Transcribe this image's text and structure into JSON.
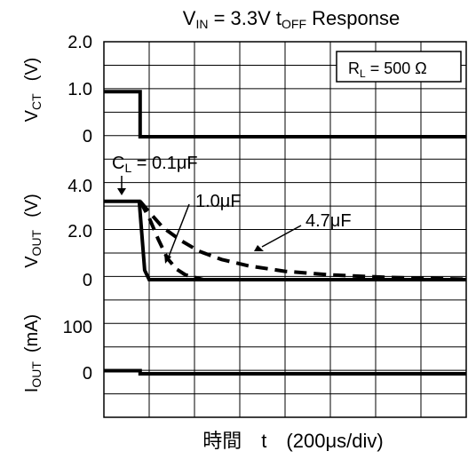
{
  "chart_data": {
    "type": "line",
    "title": {
      "main": "V",
      "main_sub": "IN",
      "mid": " = 3.3V t",
      "mid_sub": "OFF",
      "tail": " Response"
    },
    "condition": {
      "text": "R",
      "sub": "L",
      "tail": " = 500 Ω"
    },
    "xlabel": "時間　t　(200μs/div)",
    "x_divisions": 8,
    "x_unit": "div",
    "panels": [
      {
        "id": "vct",
        "ylabel": {
          "text": "V",
          "sub": "CT",
          "unit": "(V)"
        },
        "yticks": [
          {
            "value": 2.0,
            "label": "2.0"
          },
          {
            "value": 1.0,
            "label": "1.0"
          },
          {
            "value": 0,
            "label": "0"
          }
        ],
        "ylim": [
          0,
          2.0
        ],
        "series": [
          {
            "style": "solid",
            "points": [
              [
                0,
                0.95
              ],
              [
                0.8,
                0.95
              ],
              [
                0.8,
                0
              ],
              [
                8,
                0
              ]
            ]
          }
        ]
      },
      {
        "id": "vout",
        "ylabel": {
          "text": "V",
          "sub": "OUT",
          "unit": "(V)"
        },
        "yticks": [
          {
            "value": 4.0,
            "label": "4.0"
          },
          {
            "value": 2.0,
            "label": "2.0"
          },
          {
            "value": 0,
            "label": "0"
          }
        ],
        "ylim": [
          0,
          4.0
        ],
        "series": [
          {
            "name": "0.1μF",
            "style": "solid",
            "points": [
              [
                0,
                3.3
              ],
              [
                0.78,
                3.3
              ],
              [
                0.9,
                0.4
              ],
              [
                1.0,
                0
              ],
              [
                8,
                0
              ]
            ]
          },
          {
            "name": "1.0μF",
            "style": "dashed",
            "points": [
              [
                0.8,
                3.3
              ],
              [
                1.0,
                2.6
              ],
              [
                1.2,
                1.7
              ],
              [
                1.4,
                0.9
              ],
              [
                1.6,
                0.45
              ],
              [
                1.8,
                0.2
              ],
              [
                2.0,
                0.1
              ],
              [
                2.2,
                0
              ]
            ]
          },
          {
            "name": "4.7μF",
            "style": "dashed",
            "points": [
              [
                0.8,
                3.3
              ],
              [
                1.0,
                2.85
              ],
              [
                1.3,
                2.2
              ],
              [
                1.7,
                1.65
              ],
              [
                2.1,
                1.2
              ],
              [
                2.6,
                0.85
              ],
              [
                3.2,
                0.58
              ],
              [
                4.0,
                0.35
              ],
              [
                5.0,
                0.2
              ],
              [
                6.2,
                0.1
              ],
              [
                8,
                0.02
              ]
            ]
          }
        ],
        "annotations": [
          {
            "text": "C",
            "sub": "L",
            "tail": " = 0.1μF"
          },
          {
            "text": "1.0μF"
          },
          {
            "text": "4.7μF"
          }
        ]
      },
      {
        "id": "iout",
        "ylabel": {
          "text": "I",
          "sub": "OUT",
          "unit": "(mA)"
        },
        "yticks": [
          {
            "value": 100,
            "label": "100"
          },
          {
            "value": 0,
            "label": "0"
          }
        ],
        "ylim": [
          0,
          100
        ],
        "series": [
          {
            "style": "solid",
            "points": [
              [
                0,
                6.6
              ],
              [
                0.8,
                6.6
              ],
              [
                0.8,
                0
              ],
              [
                8,
                0
              ]
            ]
          }
        ]
      }
    ]
  }
}
